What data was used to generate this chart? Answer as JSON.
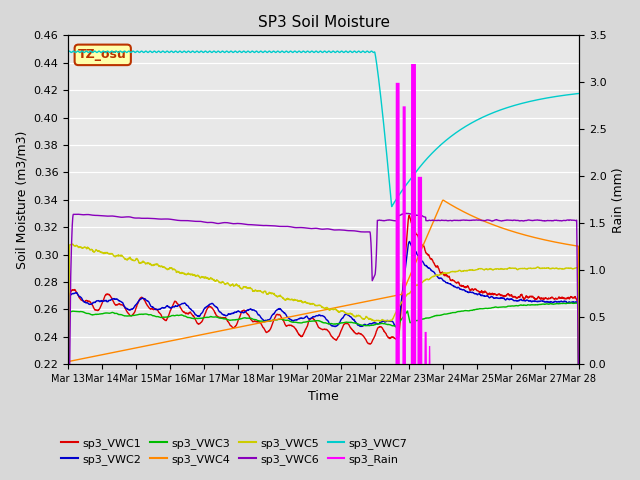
{
  "title": "SP3 Soil Moisture",
  "xlabel": "Time",
  "ylabel_left": "Soil Moisture (m3/m3)",
  "ylabel_right": "Rain (mm)",
  "ylim_left": [
    0.22,
    0.46
  ],
  "ylim_right": [
    0.0,
    3.5
  ],
  "xtick_labels": [
    "Mar 13",
    "Mar 14",
    "Mar 15",
    "Mar 16",
    "Mar 17",
    "Mar 18",
    "Mar 19",
    "Mar 20",
    "Mar 21",
    "Mar 22",
    "Mar 23",
    "Mar 24",
    "Mar 25",
    "Mar 26",
    "Mar 27",
    "Mar 28"
  ],
  "bg_color": "#e8e8e8",
  "annotation_text": "TZ_osu",
  "annotation_color": "#bb3300",
  "annotation_bg": "#ffffaa",
  "colors": {
    "VWC1": "#dd0000",
    "VWC2": "#0000cc",
    "VWC3": "#00bb00",
    "VWC4": "#ff8800",
    "VWC5": "#cccc00",
    "VWC6": "#8800bb",
    "VWC7": "#00cccc",
    "Rain": "#ff00ff"
  }
}
